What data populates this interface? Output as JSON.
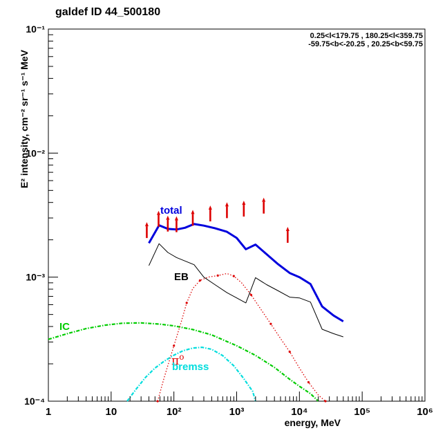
{
  "title": "galdef ID 44_500180",
  "region": {
    "line1": "0.25<l<179.75 , 180.25<l<359.75",
    "line2": "-59.75<b<-20.25 , 20.25<b<59.75"
  },
  "chart_data": {
    "type": "line",
    "xlabel": "energy, MeV",
    "ylabel": "E² intensity, cm⁻² sr⁻¹ s⁻¹ MeV",
    "xscale": "log",
    "yscale": "log",
    "xlim": [
      1,
      1000000
    ],
    "ylim": [
      0.0001,
      0.1
    ],
    "x_tick_labels": [
      "1",
      "10",
      "10²",
      "10³",
      "10⁴",
      "10⁵",
      "10⁶"
    ],
    "y_tick_labels": [
      "10⁻⁴",
      "10⁻³",
      "10⁻²",
      "10⁻¹"
    ],
    "grid": false,
    "series": [
      {
        "name": "total",
        "color": "#0000dd",
        "style": "solid-thick",
        "points": [
          [
            40,
            0.00188
          ],
          [
            58,
            0.00262
          ],
          [
            80,
            0.00245
          ],
          [
            110,
            0.00242
          ],
          [
            150,
            0.0025
          ],
          [
            210,
            0.00268
          ],
          [
            300,
            0.0026
          ],
          [
            450,
            0.00248
          ],
          [
            700,
            0.00232
          ],
          [
            1000,
            0.00207
          ],
          [
            1400,
            0.00168
          ],
          [
            2000,
            0.00183
          ],
          [
            3000,
            0.00153
          ],
          [
            4500,
            0.00128
          ],
          [
            7000,
            0.00108
          ],
          [
            10000,
            0.001
          ],
          [
            15000,
            0.00088
          ],
          [
            23000,
            0.00058
          ],
          [
            35000,
            0.00049
          ],
          [
            50000,
            0.00044
          ]
        ]
      },
      {
        "name": "EB",
        "color": "#000000",
        "style": "solid-thin",
        "points": [
          [
            40,
            0.00124
          ],
          [
            58,
            0.00186
          ],
          [
            80,
            0.00158
          ],
          [
            110,
            0.00144
          ],
          [
            150,
            0.00135
          ],
          [
            210,
            0.00126
          ],
          [
            300,
            0.001
          ],
          [
            450,
            0.00087
          ],
          [
            700,
            0.00075
          ],
          [
            1000,
            0.00068
          ],
          [
            1400,
            0.00062
          ],
          [
            2000,
            0.00099
          ],
          [
            3000,
            0.00087
          ],
          [
            4500,
            0.00078
          ],
          [
            7000,
            0.00069
          ],
          [
            10000,
            0.00068
          ],
          [
            15000,
            0.00063
          ],
          [
            23000,
            0.00038
          ],
          [
            35000,
            0.00035
          ],
          [
            50000,
            0.00033
          ]
        ]
      },
      {
        "name": "π⁰",
        "label_main": "π",
        "label_sup": "o",
        "color": "#dd0000",
        "style": "dotted",
        "points": [
          [
            55,
            0.0001
          ],
          [
            70,
            0.000155
          ],
          [
            100,
            0.00028
          ],
          [
            130,
            0.00043
          ],
          [
            160,
            0.00062
          ],
          [
            200,
            0.00081
          ],
          [
            260,
            0.00094
          ],
          [
            350,
            0.001
          ],
          [
            500,
            0.00103
          ],
          [
            700,
            0.00107
          ],
          [
            900,
            0.00102
          ],
          [
            1200,
            0.0009
          ],
          [
            1700,
            0.00072
          ],
          [
            2500,
            0.00054
          ],
          [
            3500,
            0.00042
          ],
          [
            5000,
            0.00032
          ],
          [
            7000,
            0.00025
          ],
          [
            10000,
            0.000185
          ],
          [
            14000,
            0.000142
          ],
          [
            20000,
            0.000112
          ],
          [
            26000,
            0.0001
          ]
        ]
      },
      {
        "name": "IC",
        "color": "#00cc00",
        "style": "dash-dot",
        "points": [
          [
            1,
            0.000315
          ],
          [
            2,
            0.00035
          ],
          [
            4,
            0.000385
          ],
          [
            8,
            0.00041
          ],
          [
            15,
            0.000425
          ],
          [
            30,
            0.000428
          ],
          [
            60,
            0.000418
          ],
          [
            100,
            0.000405
          ],
          [
            200,
            0.000378
          ],
          [
            400,
            0.000342
          ],
          [
            700,
            0.000303
          ],
          [
            1000,
            0.00028
          ],
          [
            2000,
            0.000234
          ],
          [
            4000,
            0.000187
          ],
          [
            7000,
            0.00015
          ],
          [
            10000,
            0.000132
          ],
          [
            15000,
            0.000115
          ],
          [
            20000,
            0.0001
          ]
        ]
      },
      {
        "name": "bremss",
        "color": "#00dddd",
        "style": "dash-dot",
        "points": [
          [
            18,
            0.0001
          ],
          [
            25,
            0.000125
          ],
          [
            35,
            0.000155
          ],
          [
            50,
            0.000185
          ],
          [
            70,
            0.00021
          ],
          [
            100,
            0.000235
          ],
          [
            140,
            0.000255
          ],
          [
            200,
            0.000268
          ],
          [
            280,
            0.000272
          ],
          [
            400,
            0.000262
          ],
          [
            600,
            0.000233
          ],
          [
            900,
            0.000193
          ],
          [
            1300,
            0.000152
          ],
          [
            1800,
            0.00012
          ],
          [
            2000,
            0.0001
          ]
        ]
      }
    ],
    "data_arrows": {
      "color": "#dd0000",
      "direction": "up",
      "points": [
        [
          37,
          0.00235
        ],
        [
          57,
          0.0029
        ],
        [
          80,
          0.00265
        ],
        [
          110,
          0.00262
        ],
        [
          200,
          0.00295
        ],
        [
          380,
          0.0032
        ],
        [
          700,
          0.0034
        ],
        [
          1300,
          0.0035
        ],
        [
          2700,
          0.0037
        ],
        [
          6500,
          0.00215
        ]
      ]
    }
  }
}
